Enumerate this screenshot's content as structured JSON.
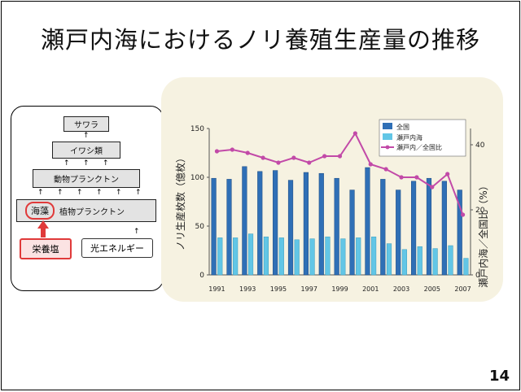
{
  "slide": {
    "title": "瀬戸内海におけるノリ養殖生産量の推移",
    "page_number": "14"
  },
  "pyramid": {
    "levels": [
      "サワラ",
      "イワシ類",
      "動物プランクトン"
    ],
    "base_left": "海藻",
    "base_right": "植物プランクトン",
    "nutrient_box": "栄養塩",
    "light_box": "光エネルギー"
  },
  "colors": {
    "national_bar": "#2f6fb6",
    "setouchi_bar": "#62c6e6",
    "ratio_line": "#c24aa8",
    "panel_background": "#f6f2e1",
    "nutrient_border": "#e03a3a"
  },
  "chart_data": {
    "type": "bar",
    "title": "",
    "x": [
      1991,
      1992,
      1993,
      1994,
      1995,
      1996,
      1997,
      1998,
      1999,
      2000,
      2001,
      2002,
      2003,
      2004,
      2005,
      2006,
      2007
    ],
    "x_tick_labels": [
      "1991",
      "1993",
      "1995",
      "1997",
      "1999",
      "2001",
      "2003",
      "2005",
      "2007"
    ],
    "ylabel_left": "ノリ生産枚数（億枚）",
    "ylabel_right": "瀬戸内海／全国比（%）",
    "ylim_left": [
      0,
      150
    ],
    "ylim_right": [
      0,
      45
    ],
    "y_ticks_left": [
      "0",
      "50",
      "100",
      "150"
    ],
    "y_ticks_right": [
      "0",
      "20",
      "40"
    ],
    "legend_position": "top-right",
    "series": [
      {
        "name": "全国",
        "type": "bar",
        "axis": "left",
        "values": [
          99,
          98,
          111,
          106,
          107,
          97,
          105,
          104,
          99,
          87,
          110,
          98,
          87,
          96,
          99,
          96,
          87
        ]
      },
      {
        "name": "瀬戸内海",
        "type": "bar",
        "axis": "left",
        "values": [
          38,
          38,
          42,
          39,
          38,
          36,
          37,
          39,
          37,
          38,
          39,
          32,
          26,
          29,
          27,
          30,
          17
        ]
      },
      {
        "name": "瀬戸内／全国比",
        "type": "line",
        "axis": "right",
        "values": [
          38,
          38.5,
          37.5,
          36,
          34.5,
          36,
          34.5,
          36.5,
          36.5,
          43.5,
          34,
          32.5,
          30,
          30,
          27,
          31,
          18.5
        ]
      }
    ]
  }
}
